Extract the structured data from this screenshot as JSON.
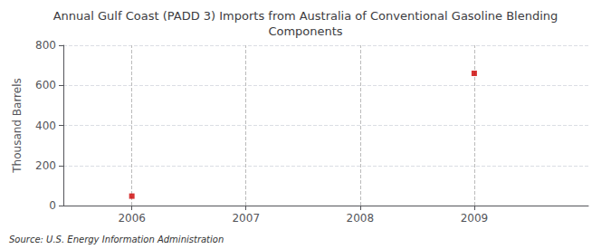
{
  "chart_data": {
    "type": "scatter",
    "title": "Annual Gulf Coast (PADD 3) Imports from Australia of Conventional Gasoline Blending\nComponents",
    "ylabel": "Thousand Barrels",
    "source": "Source: U.S. Energy Information Administration",
    "x": [
      2006,
      2009
    ],
    "values": [
      47,
      660
    ],
    "color": "#cc0000",
    "marker": "square",
    "xlim": [
      2005.4,
      2010
    ],
    "xticks": [
      2006,
      2007,
      2008,
      2009
    ],
    "ylim": [
      0,
      800
    ],
    "yticks": [
      0,
      200,
      400,
      600,
      800
    ],
    "grid": true
  }
}
